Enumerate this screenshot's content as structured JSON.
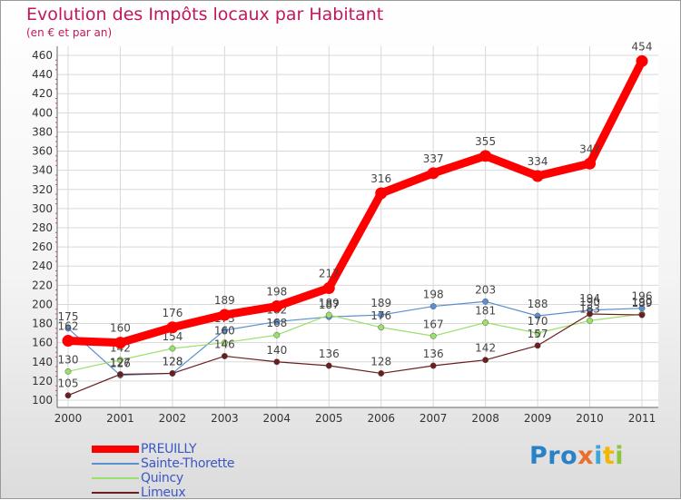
{
  "chart_data": {
    "type": "line",
    "title": "Evolution des Impôts locaux par Habitant",
    "subtitle": "(en € et par an)",
    "xlabel": "",
    "ylabel": "",
    "categories": [
      "2000",
      "2001",
      "2002",
      "2003",
      "2004",
      "2005",
      "2006",
      "2007",
      "2008",
      "2009",
      "2010",
      "2011"
    ],
    "ylim": [
      100,
      460
    ],
    "yticks": [
      100,
      120,
      140,
      160,
      180,
      200,
      220,
      240,
      260,
      280,
      300,
      320,
      340,
      360,
      380,
      400,
      420,
      440,
      460
    ],
    "grid": true,
    "legend_position": "bottom-left",
    "series": [
      {
        "name": "Sainte-Thorette",
        "color": "#5b8fcf",
        "values": [
          175,
          126,
          128,
          173,
          182,
          187,
          189,
          198,
          203,
          188,
          194,
          196
        ],
        "labels": [
          "175",
          "126",
          "128",
          "173",
          "182",
          "187",
          "189",
          "198",
          "203",
          "188",
          "194",
          "196"
        ]
      },
      {
        "name": "Quincy",
        "color": "#9be06a",
        "values": [
          130,
          142,
          154,
          160,
          168,
          189,
          176,
          167,
          181,
          170,
          183,
          190
        ],
        "labels": [
          "130",
          "142",
          "154",
          "160",
          "168",
          "189",
          "176",
          "167",
          "181",
          "170",
          "183",
          "190"
        ]
      },
      {
        "name": "Limeux",
        "color": "#6b1e1e",
        "values": [
          105,
          127,
          128,
          146,
          140,
          136,
          128,
          136,
          142,
          157,
          190,
          189
        ],
        "labels": [
          "105",
          "127",
          "128",
          "146",
          "140",
          "136",
          "128",
          "136",
          "142",
          "157",
          "190",
          "189"
        ]
      },
      {
        "name": "PREUILLY",
        "color": "#ff0000",
        "values": [
          162,
          160,
          176,
          189,
          198,
          217,
          316,
          337,
          355,
          334,
          347,
          454
        ],
        "labels": [
          "162",
          "160",
          "176",
          "189",
          "198",
          "217",
          "316",
          "337",
          "355",
          "334",
          "347",
          "454"
        ]
      }
    ]
  },
  "legend": {
    "items": [
      {
        "label": "PREUILLY",
        "color": "#ff0000"
      },
      {
        "label": "Sainte-Thorette",
        "color": "#5b8fcf"
      },
      {
        "label": "Quincy",
        "color": "#9be06a"
      },
      {
        "label": "Limeux",
        "color": "#6b1e1e"
      }
    ]
  },
  "logo": {
    "p1": "Pro",
    "p2": "x",
    "p3": "i",
    "p4": "t",
    "p5": "i"
  }
}
